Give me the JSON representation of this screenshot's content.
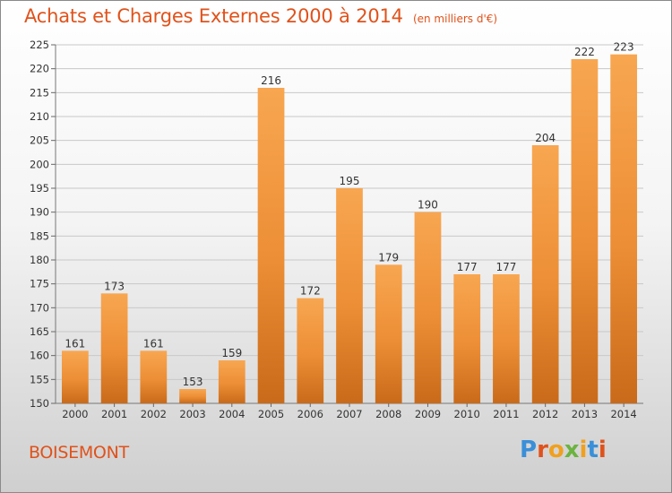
{
  "header": {
    "title": "Achats et Charges Externes 2000 à 2014",
    "unit": "(en milliers d'€)"
  },
  "footer": {
    "location": "BOISEMONT",
    "logo_text": "Proxiti"
  },
  "colors": {
    "accent": "#e0521b",
    "bar_light": "#f6a24e",
    "bar_dark": "#cc6f1c"
  },
  "chart_data": {
    "type": "bar",
    "title": "Achats et Charges Externes 2000 à 2014",
    "subtitle": "(en milliers d'€)",
    "xlabel": "",
    "ylabel": "",
    "categories": [
      "2000",
      "2001",
      "2002",
      "2003",
      "2004",
      "2005",
      "2006",
      "2007",
      "2008",
      "2009",
      "2010",
      "2011",
      "2012",
      "2013",
      "2014"
    ],
    "values": [
      161,
      173,
      161,
      153,
      159,
      216,
      172,
      195,
      179,
      190,
      177,
      177,
      204,
      222,
      223
    ],
    "ylim": [
      150,
      225
    ],
    "yticks": [
      150,
      155,
      160,
      165,
      170,
      175,
      180,
      185,
      190,
      195,
      200,
      205,
      210,
      215,
      220,
      225
    ],
    "grid": true,
    "legend": "none"
  }
}
